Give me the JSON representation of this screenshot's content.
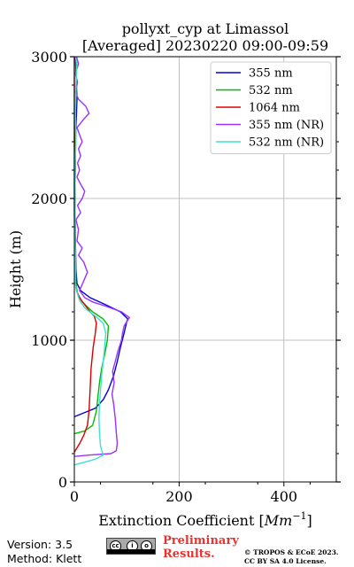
{
  "chart_data": {
    "type": "line",
    "title": "pollyxt_cyp at Limassol",
    "subtitle": "[Averaged] 20230220 09:00-09:59",
    "xlabel": "Extinction Coefficient [Mm⁻¹]",
    "ylabel": "Height (m)",
    "xlim": [
      0,
      500
    ],
    "ylim": [
      0,
      3000
    ],
    "x_ticks": [
      0,
      200,
      400
    ],
    "y_ticks": [
      0,
      1000,
      2000,
      3000
    ],
    "grid": true,
    "legend_position": "top-right",
    "series": [
      {
        "name": "355 nm",
        "color": "#0000dd",
        "points": [
          [
            0,
            460
          ],
          [
            20,
            490
          ],
          [
            40,
            520
          ],
          [
            55,
            580
          ],
          [
            65,
            650
          ],
          [
            75,
            750
          ],
          [
            82,
            850
          ],
          [
            88,
            950
          ],
          [
            95,
            1050
          ],
          [
            100,
            1130
          ],
          [
            102,
            1150
          ],
          [
            88,
            1200
          ],
          [
            60,
            1250
          ],
          [
            30,
            1300
          ],
          [
            12,
            1350
          ],
          [
            5,
            1400
          ],
          [
            3,
            1500
          ],
          [
            2,
            1700
          ],
          [
            1,
            2000
          ],
          [
            2,
            2300
          ],
          [
            3,
            2500
          ],
          [
            5,
            2700
          ],
          [
            3,
            2900
          ],
          [
            2,
            3000
          ]
        ]
      },
      {
        "name": "532 nm",
        "color": "#00bb00",
        "points": [
          [
            0,
            340
          ],
          [
            20,
            360
          ],
          [
            35,
            400
          ],
          [
            42,
            500
          ],
          [
            45,
            600
          ],
          [
            48,
            700
          ],
          [
            52,
            800
          ],
          [
            58,
            900
          ],
          [
            63,
            1000
          ],
          [
            65,
            1100
          ],
          [
            55,
            1150
          ],
          [
            35,
            1200
          ],
          [
            15,
            1270
          ],
          [
            6,
            1330
          ],
          [
            3,
            1400
          ],
          [
            2,
            1600
          ],
          [
            1,
            1800
          ],
          [
            1,
            2000
          ],
          [
            2,
            2300
          ],
          [
            2,
            2600
          ],
          [
            4,
            2800
          ],
          [
            3,
            3000
          ]
        ]
      },
      {
        "name": "1064 nm",
        "color": "#dd0000",
        "points": [
          [
            0,
            210
          ],
          [
            10,
            270
          ],
          [
            18,
            330
          ],
          [
            25,
            400
          ],
          [
            28,
            500
          ],
          [
            30,
            650
          ],
          [
            32,
            800
          ],
          [
            36,
            950
          ],
          [
            40,
            1050
          ],
          [
            42,
            1120
          ],
          [
            38,
            1170
          ],
          [
            30,
            1200
          ],
          [
            20,
            1250
          ],
          [
            10,
            1300
          ],
          [
            4,
            1350
          ],
          [
            2,
            1400
          ],
          [
            1,
            1600
          ],
          [
            0,
            1900
          ],
          [
            0,
            2200
          ],
          [
            0,
            2600
          ],
          [
            0,
            3000
          ]
        ]
      },
      {
        "name": "355 nm (NR)",
        "color": "#9b30ff",
        "points": [
          [
            0,
            180
          ],
          [
            30,
            190
          ],
          [
            70,
            200
          ],
          [
            80,
            220
          ],
          [
            82,
            270
          ],
          [
            80,
            350
          ],
          [
            78,
            450
          ],
          [
            75,
            550
          ],
          [
            72,
            620
          ],
          [
            76,
            700
          ],
          [
            73,
            780
          ],
          [
            78,
            850
          ],
          [
            83,
            920
          ],
          [
            90,
            1000
          ],
          [
            92,
            1050
          ],
          [
            95,
            1100
          ],
          [
            105,
            1160
          ],
          [
            90,
            1200
          ],
          [
            60,
            1240
          ],
          [
            35,
            1270
          ],
          [
            20,
            1300
          ],
          [
            10,
            1350
          ],
          [
            18,
            1420
          ],
          [
            25,
            1480
          ],
          [
            18,
            1550
          ],
          [
            8,
            1600
          ],
          [
            15,
            1650
          ],
          [
            5,
            1700
          ],
          [
            8,
            1780
          ],
          [
            3,
            1850
          ],
          [
            12,
            1900
          ],
          [
            6,
            1950
          ],
          [
            15,
            2000
          ],
          [
            20,
            2050
          ],
          [
            12,
            2100
          ],
          [
            5,
            2150
          ],
          [
            10,
            2200
          ],
          [
            6,
            2250
          ],
          [
            12,
            2300
          ],
          [
            8,
            2350
          ],
          [
            15,
            2400
          ],
          [
            10,
            2450
          ],
          [
            5,
            2500
          ],
          [
            18,
            2560
          ],
          [
            28,
            2600
          ],
          [
            22,
            2650
          ],
          [
            8,
            2700
          ],
          [
            2,
            2750
          ],
          [
            6,
            2820
          ],
          [
            2,
            2880
          ],
          [
            8,
            2950
          ],
          [
            4,
            3000
          ]
        ]
      },
      {
        "name": "532 nm (NR)",
        "color": "#40e0d0",
        "points": [
          [
            0,
            120
          ],
          [
            20,
            140
          ],
          [
            40,
            160
          ],
          [
            55,
            190
          ],
          [
            50,
            250
          ],
          [
            48,
            350
          ],
          [
            47,
            450
          ],
          [
            48,
            550
          ],
          [
            50,
            650
          ],
          [
            52,
            750
          ],
          [
            55,
            850
          ],
          [
            58,
            950
          ],
          [
            60,
            1050
          ],
          [
            55,
            1120
          ],
          [
            40,
            1170
          ],
          [
            22,
            1220
          ],
          [
            10,
            1280
          ],
          [
            4,
            1350
          ],
          [
            2,
            1400
          ],
          [
            2,
            1600
          ],
          [
            1,
            1800
          ],
          [
            2,
            2000
          ],
          [
            1,
            2200
          ],
          [
            3,
            2400
          ],
          [
            2,
            2600
          ],
          [
            3,
            2800
          ],
          [
            5,
            2950
          ],
          [
            2,
            3000
          ]
        ]
      }
    ]
  },
  "footer": {
    "version": "Version: 3.5",
    "method": "Method: Klett",
    "prelim_line1": "Preliminary",
    "prelim_line2": "Results.",
    "copyright_line1": "© TROPOS & ECoE 2023.",
    "copyright_line2": "CC BY SA 4.0 License."
  }
}
